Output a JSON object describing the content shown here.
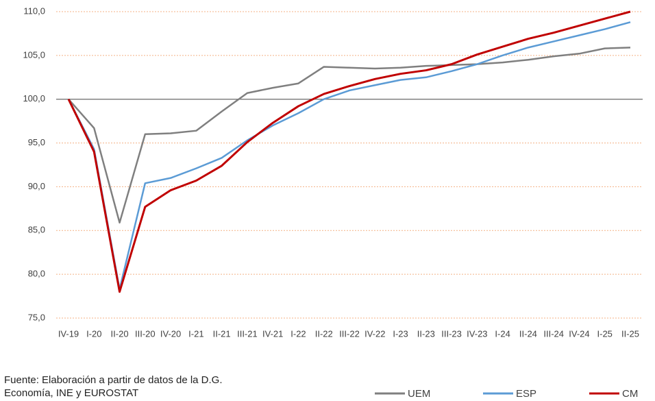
{
  "chart_data": {
    "type": "line",
    "categories": [
      "IV-19",
      "I-20",
      "II-20",
      "III-20",
      "IV-20",
      "I-21",
      "II-21",
      "III-21",
      "IV-21",
      "I-22",
      "II-22",
      "III-22",
      "IV-22",
      "I-23",
      "II-23",
      "III-23",
      "IV-23",
      "I-24",
      "II-24",
      "III-24",
      "IV-24",
      "I-25",
      "II-25"
    ],
    "series": [
      {
        "name": "UEM",
        "color": "#7f7f7f",
        "values": [
          100,
          96.7,
          85.9,
          96.0,
          96.1,
          96.4,
          98.6,
          100.7,
          101.3,
          101.8,
          103.7,
          103.6,
          103.5,
          103.6,
          103.8,
          103.9,
          104.0,
          104.2,
          104.5,
          104.9,
          105.2,
          105.8,
          105.9
        ]
      },
      {
        "name": "ESP",
        "color": "#5b9bd5",
        "values": [
          100,
          94.3,
          78.3,
          90.4,
          91.0,
          92.1,
          93.3,
          95.3,
          97.0,
          98.4,
          100.0,
          101.0,
          101.6,
          102.2,
          102.5,
          103.2,
          104.0,
          105.0,
          105.9,
          106.6,
          107.3,
          108.0,
          108.8
        ]
      },
      {
        "name": "CM",
        "color": "#c00000",
        "values": [
          100,
          94.0,
          78.0,
          87.7,
          89.6,
          90.7,
          92.4,
          95.1,
          97.3,
          99.2,
          100.6,
          101.5,
          102.3,
          102.9,
          103.3,
          104.0,
          105.1,
          106.0,
          106.9,
          107.6,
          108.4,
          109.2,
          110.0
        ]
      }
    ],
    "ylim": [
      75,
      110
    ],
    "yticks": [
      {
        "value": 75,
        "label": "75,0"
      },
      {
        "value": 80,
        "label": "80,0"
      },
      {
        "value": 85,
        "label": "85,0"
      },
      {
        "value": 90,
        "label": "90,0"
      },
      {
        "value": 95,
        "label": "95,0"
      },
      {
        "value": 100,
        "label": "100,0"
      },
      {
        "value": 105,
        "label": "105,0"
      },
      {
        "value": 110,
        "label": "110,0"
      }
    ],
    "grid": true,
    "reference_line": 100,
    "legend": "bottom-right",
    "source": [
      "Fuente: Elaboración a partir de datos de la D.G.",
      "Economía, INE y EUROSTAT"
    ]
  }
}
